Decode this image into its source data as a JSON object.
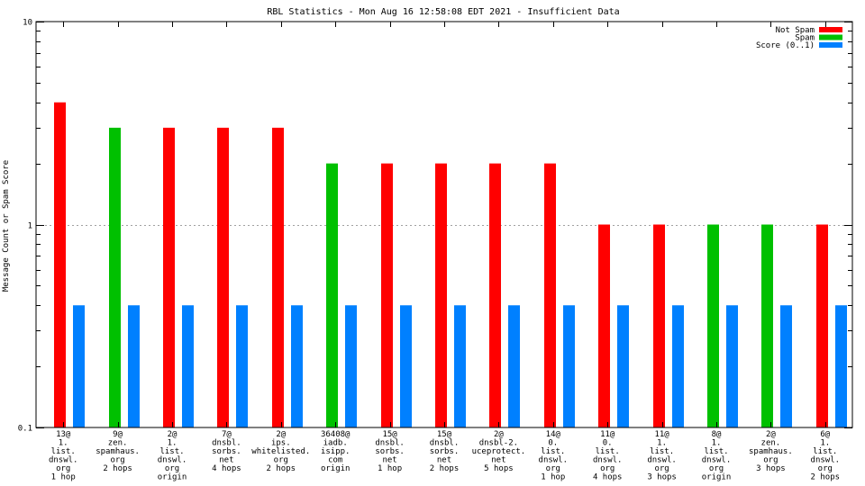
{
  "chart_data": {
    "type": "bar",
    "title": "RBL Statistics - Mon Aug 16 12:58:08 EDT 2021 - Insufficient Data",
    "xlabel": "",
    "ylabel": "Message Count or Spam Score",
    "yscale": "log",
    "ylim": [
      0.1,
      10
    ],
    "yticks": [
      {
        "value": 10,
        "label": "10"
      },
      {
        "value": 1,
        "label": "1"
      },
      {
        "value": 0.1,
        "label": "0.1"
      }
    ],
    "grid": "horizontal dotted at major ticks",
    "legend_position": "top-right",
    "categories": [
      [
        "13@",
        "1.",
        "list.",
        "dnswl.",
        "org",
        "1 hop"
      ],
      [
        "9@",
        "zen.",
        "spamhaus.",
        "org",
        "2 hops"
      ],
      [
        "2@",
        "1.",
        "list.",
        "dnswl.",
        "org",
        "origin"
      ],
      [
        "7@",
        "dnsbl.",
        "sorbs.",
        "net",
        "4 hops"
      ],
      [
        "2@",
        "ips.",
        "whitelisted.",
        "org",
        "2 hops"
      ],
      [
        "36408@",
        "iadb.",
        "isipp.",
        "com",
        "origin"
      ],
      [
        "15@",
        "dnsbl.",
        "sorbs.",
        "net",
        "1 hop"
      ],
      [
        "15@",
        "dnsbl.",
        "sorbs.",
        "net",
        "2 hops"
      ],
      [
        "2@",
        "dnsbl-2.",
        "uceprotect.",
        "net",
        "5 hops"
      ],
      [
        "14@",
        "0.",
        "list.",
        "dnswl.",
        "org",
        "1 hop"
      ],
      [
        "11@",
        "0.",
        "list.",
        "dnswl.",
        "org",
        "4 hops"
      ],
      [
        "11@",
        "1.",
        "list.",
        "dnswl.",
        "org",
        "3 hops"
      ],
      [
        "8@",
        "1.",
        "list.",
        "dnswl.",
        "org",
        "origin"
      ],
      [
        "2@",
        "zen.",
        "spamhaus.",
        "org",
        "3 hops"
      ],
      [
        "6@",
        "1.",
        "list.",
        "dnswl.",
        "org",
        "2 hops"
      ]
    ],
    "series": [
      {
        "name": "Not Spam",
        "color": "#ff0000",
        "values": [
          4,
          null,
          3,
          3,
          3,
          null,
          2,
          2,
          2,
          2,
          1,
          1,
          null,
          null,
          1
        ]
      },
      {
        "name": "Spam",
        "color": "#00c000",
        "values": [
          null,
          3,
          null,
          null,
          null,
          2,
          null,
          null,
          null,
          null,
          null,
          null,
          1,
          1,
          null
        ]
      },
      {
        "name": "Score (0..1)",
        "color": "#0080ff",
        "values": [
          0.4,
          0.4,
          0.4,
          0.4,
          0.4,
          0.4,
          0.4,
          0.4,
          0.4,
          0.4,
          0.4,
          0.4,
          0.4,
          0.4,
          0.4
        ]
      }
    ]
  }
}
